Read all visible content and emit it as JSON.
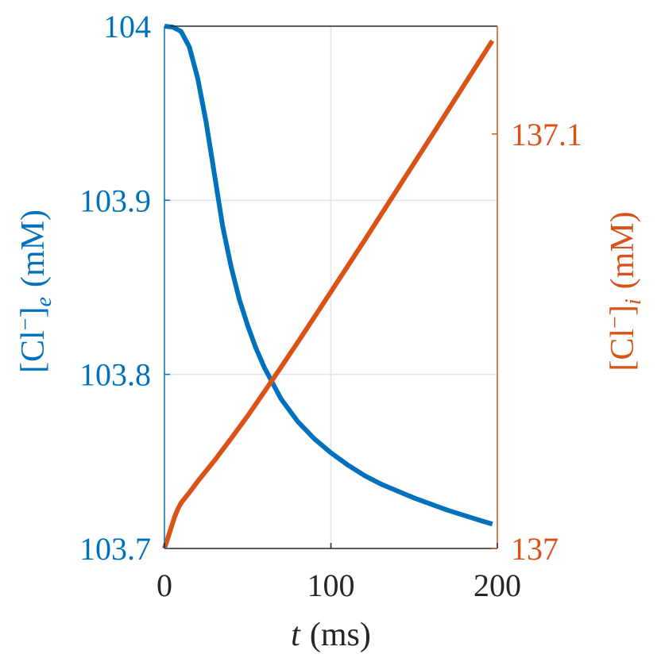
{
  "chart_data": {
    "type": "line",
    "xlabel": {
      "var": "t",
      "unit": "(ms)"
    },
    "ylabel_left": {
      "prefix": "[Cl",
      "sup": "−",
      "mid": "]",
      "sub": "e",
      "unit": "(mM)"
    },
    "ylabel_right": {
      "prefix": "[Cl",
      "sup": "−",
      "mid": "]",
      "sub": "i",
      "unit": "(mM)"
    },
    "xlim": [
      0,
      200
    ],
    "ylim_left": [
      103.7,
      104.0
    ],
    "ylim_right": [
      137.0,
      137.126
    ],
    "x_ticks": [
      {
        "value": 0,
        "label": "0"
      },
      {
        "value": 100,
        "label": "100"
      },
      {
        "value": 200,
        "label": "200"
      }
    ],
    "y_left_ticks": [
      {
        "value": 103.7,
        "label": "103.7"
      },
      {
        "value": 103.8,
        "label": "103.8"
      },
      {
        "value": 103.9,
        "label": "103.9"
      },
      {
        "value": 104.0,
        "label": "104"
      }
    ],
    "y_right_ticks": [
      {
        "value": 137.0,
        "label": "137"
      },
      {
        "value": 137.1,
        "label": "137.1"
      }
    ],
    "grid": true,
    "colors": {
      "left": "#0072BD",
      "right": "#D95319",
      "grid": "#dfe6ee",
      "axis": "#262626"
    },
    "series": [
      {
        "axis": "left",
        "x": [
          0,
          5,
          10,
          15,
          20,
          25,
          30,
          35,
          40,
          45,
          50,
          55,
          60,
          70,
          80,
          90,
          100,
          110,
          120,
          130,
          140,
          150,
          160,
          170,
          180,
          190,
          197
        ],
        "y": [
          104.0,
          103.9995,
          103.997,
          103.988,
          103.97,
          103.945,
          103.915,
          103.885,
          103.862,
          103.843,
          103.828,
          103.815,
          103.804,
          103.786,
          103.773,
          103.763,
          103.755,
          103.748,
          103.742,
          103.737,
          103.733,
          103.729,
          103.7255,
          103.722,
          103.719,
          103.716,
          103.714
        ]
      },
      {
        "axis": "right",
        "x": [
          0,
          2,
          4,
          6,
          8,
          10,
          15,
          20,
          30,
          40,
          50,
          60,
          70,
          80,
          90,
          100,
          120,
          140,
          160,
          180,
          197
        ],
        "y": [
          137.0,
          137.0025,
          137.005,
          137.0075,
          137.0095,
          137.011,
          137.0135,
          137.0162,
          137.0212,
          137.0265,
          137.032,
          137.0378,
          137.0437,
          137.0497,
          137.0558,
          137.0619,
          137.0742,
          137.0867,
          137.0992,
          137.1118,
          137.1225
        ]
      }
    ]
  }
}
